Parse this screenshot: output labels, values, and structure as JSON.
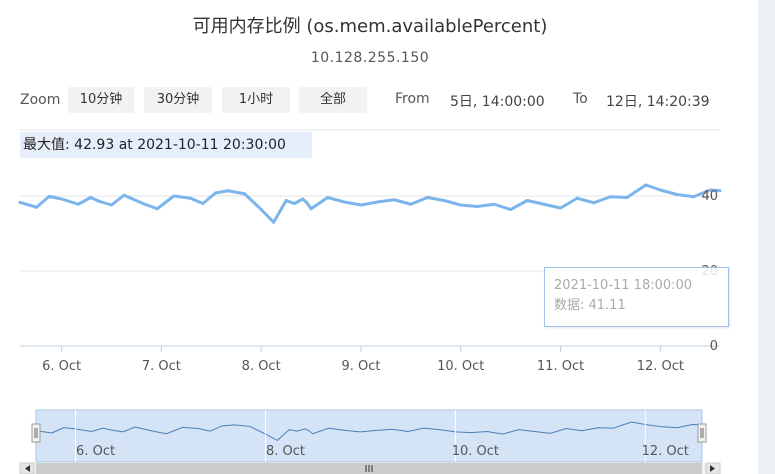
{
  "title": "可用内存比例 (os.mem.availablePercent)",
  "subtitle": "10.128.255.150",
  "zoom": {
    "label": "Zoom",
    "buttons": [
      "10分钟",
      "30分钟",
      "1小时",
      "全部"
    ]
  },
  "range": {
    "from_label": "From",
    "from_value": "5日, 14:00:00",
    "to_label": "To",
    "to_value": "12日, 14:20:39"
  },
  "max_label": "最大值: 42.93 at 2021-10-11 20:30:00",
  "tooltip": {
    "time": "2021-10-11 18:00:00",
    "value_text": "数据: 41.11"
  },
  "colors": {
    "series": "#7cb5ec",
    "navigator_fill": "#d4e3f5",
    "grid": "#e6e6e6"
  },
  "chart_data": {
    "type": "line",
    "title": "可用内存比例 (os.mem.availablePercent)",
    "subtitle": "10.128.255.150",
    "x_axis_type": "datetime",
    "x_range": [
      "2021-10-05 14:00:00",
      "2021-10-12 14:20:39"
    ],
    "x_ticks": [
      "6. Oct",
      "7. Oct",
      "8. Oct",
      "9. Oct",
      "10. Oct",
      "11. Oct",
      "12. Oct"
    ],
    "y_ticks": [
      0,
      20,
      40
    ],
    "ylim": [
      0,
      40
    ],
    "grid": true,
    "series": [
      {
        "x": [
          "2021-10-05 14:00",
          "2021-10-05 18:00",
          "2021-10-05 21:00",
          "2021-10-06 00:00",
          "2021-10-06 04:00",
          "2021-10-06 07:00",
          "2021-10-06 09:00",
          "2021-10-06 12:00",
          "2021-10-06 15:00",
          "2021-10-06 20:00",
          "2021-10-06 23:00",
          "2021-10-07 03:00",
          "2021-10-07 07:00",
          "2021-10-07 10:00",
          "2021-10-07 13:00",
          "2021-10-07 16:00",
          "2021-10-07 20:00",
          "2021-10-08 00:00",
          "2021-10-08 03:00",
          "2021-10-08 06:00",
          "2021-10-08 08:00",
          "2021-10-08 10:00",
          "2021-10-08 11:00",
          "2021-10-08 12:00",
          "2021-10-08 16:00",
          "2021-10-08 20:00",
          "2021-10-09 00:00",
          "2021-10-09 04:00",
          "2021-10-09 08:00",
          "2021-10-09 12:00",
          "2021-10-09 16:00",
          "2021-10-09 20:00",
          "2021-10-10 00:00",
          "2021-10-10 04:00",
          "2021-10-10 08:00",
          "2021-10-10 12:00",
          "2021-10-10 16:00",
          "2021-10-10 20:00",
          "2021-10-11 00:00",
          "2021-10-11 04:00",
          "2021-10-11 08:00",
          "2021-10-11 12:00",
          "2021-10-11 16:00",
          "2021-10-11 18:00",
          "2021-10-11 20:30",
          "2021-10-12 00:00",
          "2021-10-12 04:00",
          "2021-10-12 08:00",
          "2021-10-12 12:00",
          "2021-10-12 14:20"
        ],
        "values": [
          38.3,
          37.0,
          39.9,
          39.2,
          37.8,
          39.6,
          38.6,
          37.6,
          40.2,
          37.8,
          36.6,
          40.0,
          39.4,
          38.0,
          40.8,
          41.4,
          40.6,
          36.4,
          33.0,
          38.8,
          38.0,
          39.2,
          38.2,
          36.6,
          39.6,
          38.4,
          37.6,
          38.4,
          39.0,
          37.8,
          39.6,
          38.8,
          37.6,
          37.2,
          37.8,
          36.4,
          38.8,
          37.8,
          36.8,
          39.4,
          38.2,
          39.8,
          39.6,
          41.1,
          42.93,
          41.6,
          40.4,
          39.8,
          41.6,
          41.4
        ]
      }
    ]
  }
}
